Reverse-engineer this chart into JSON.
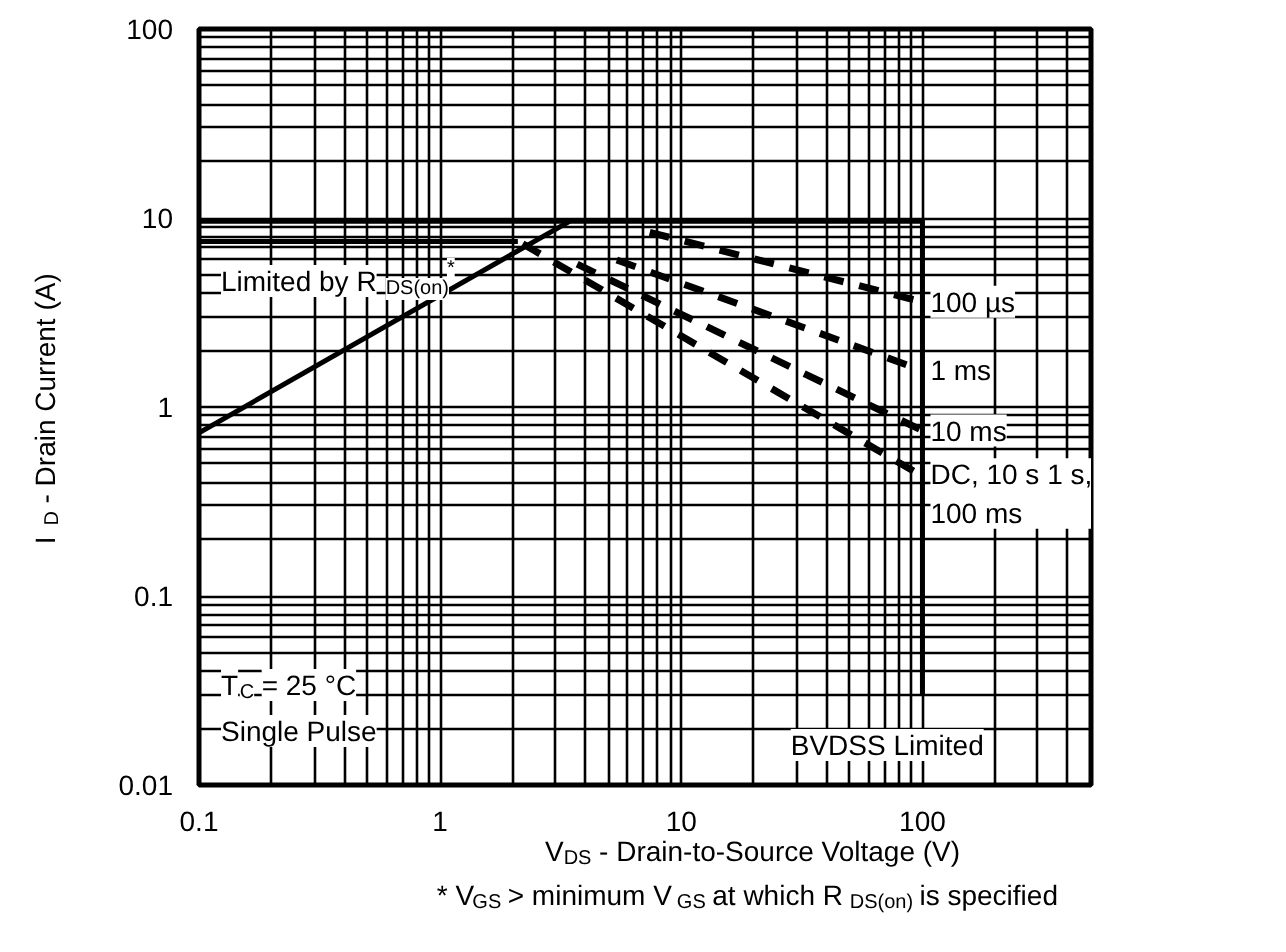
{
  "chart_data": {
    "type": "line",
    "xlabel": "V$_{DS}$ - Drain-to-Source Voltage (V)",
    "ylabel": "I$_{D}$ - Drain Current (A)",
    "log": "xy",
    "xlim": [
      0.1,
      500
    ],
    "ylim": [
      0.01,
      100
    ],
    "xticks": [
      0.1,
      1,
      10,
      100
    ],
    "yticks": [
      0.01,
      0.1,
      1,
      10,
      100
    ],
    "grid": true,
    "series": [
      {
        "color": "#000000",
        "x": [
          0.1,
          3.44
        ],
        "values": [
          0.73,
          9.6
        ],
        "line_style": "solid"
      },
      {
        "color": "#000000",
        "x": [
          0.1,
          100,
          100
        ],
        "values": [
          9.6,
          9.6,
          0.03
        ],
        "line_style": "solid"
      },
      {
        "color": "#000000",
        "x": [
          0.1,
          2.1
        ],
        "values": [
          7.5,
          7.5
        ],
        "line_style": "solid"
      },
      {
        "name": "100 µs",
        "color": "#000000",
        "x": [
          7.4,
          100
        ],
        "values": [
          8.4,
          3.6
        ],
        "line_style": "dashed"
      },
      {
        "name": "1 ms",
        "color": "#000000",
        "x": [
          5.4,
          100
        ],
        "values": [
          6.0,
          1.56
        ],
        "line_style": "dashed"
      },
      {
        "name": "10 ms",
        "color": "#000000",
        "x": [
          3.7,
          100
        ],
        "values": [
          5.7,
          0.75
        ],
        "line_style": "dashed"
      },
      {
        "name": "DC, 10 s 1 s, 100 ms",
        "color": "#000000",
        "x": [
          2.2,
          100
        ],
        "values": [
          7.3,
          0.43
        ],
        "line_style": "dashed"
      }
    ],
    "annotations": [
      "Limited by R$_{DS(on)}$$^{*}$",
      "BVDSS Limited",
      "T$_{C}$ = 25 °C",
      "Single Pulse",
      "* V$_{GS}$ > minimum V$_{GS}$ at which R$_{DS(on)}$ is specified"
    ]
  }
}
